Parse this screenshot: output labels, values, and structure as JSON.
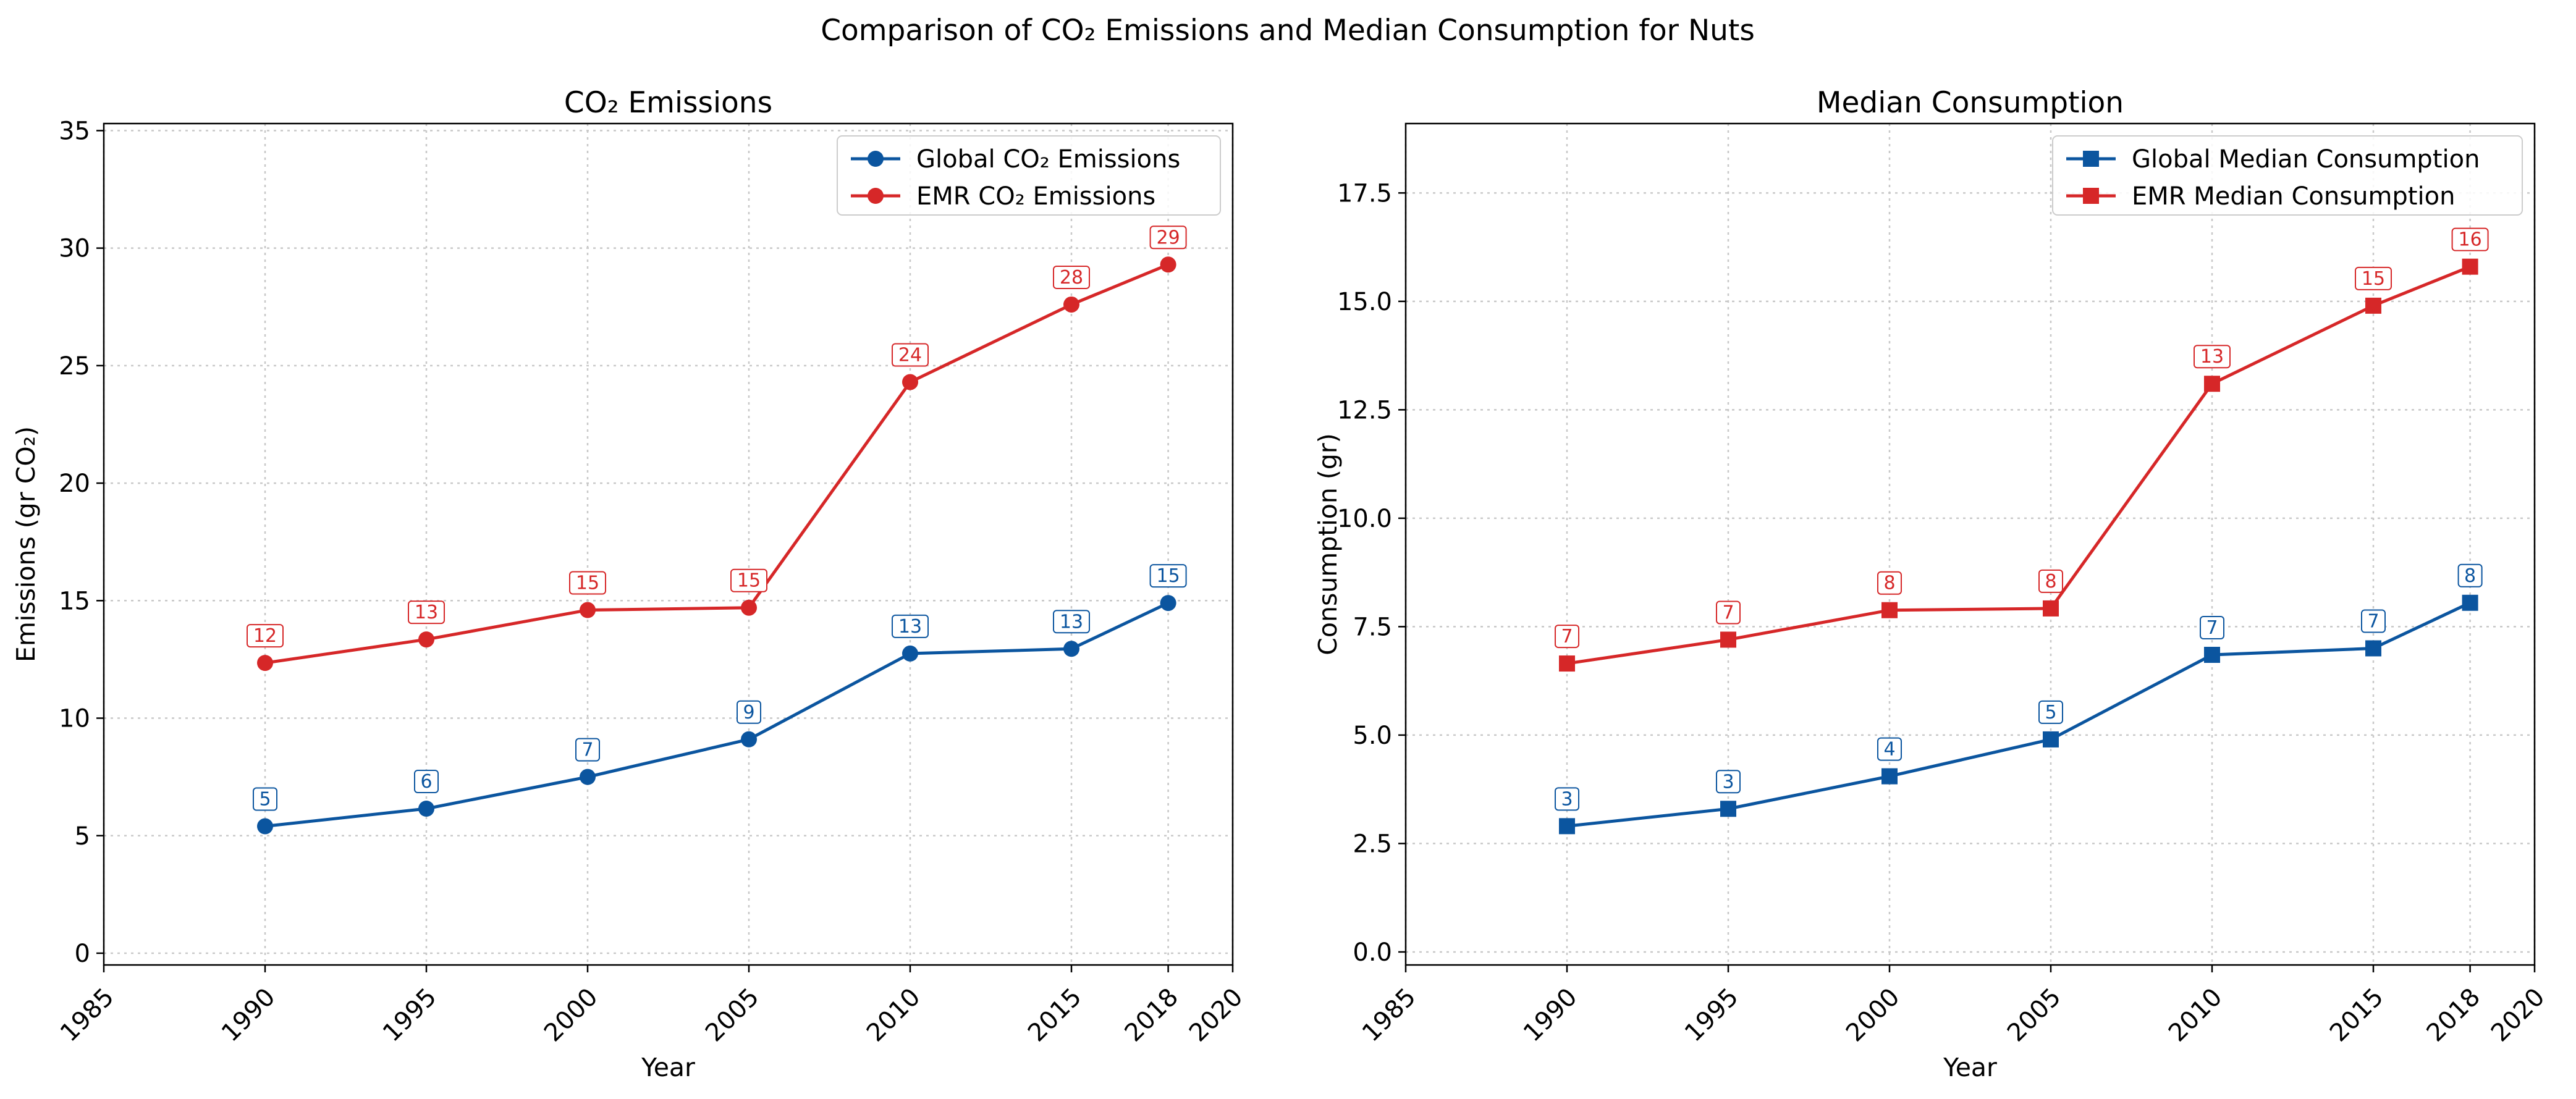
{
  "figure": {
    "suptitle": "Comparison of CO₂ Emissions and Median Consumption for Nuts"
  },
  "colors": {
    "global": "#0b559f",
    "emr": "#d62728",
    "grid": "#c8c8c8"
  },
  "chart_data": [
    {
      "type": "line",
      "title": "CO₂ Emissions",
      "xlabel": "Year",
      "ylabel": "Emissions (gr CO₂)",
      "xlim": [
        1985,
        2020
      ],
      "ylim": [
        -0.5,
        35.3
      ],
      "xticks": [
        1985,
        1990,
        1995,
        2000,
        2005,
        2010,
        2015,
        2018,
        2020
      ],
      "yticks": [
        0,
        5,
        10,
        15,
        20,
        25,
        30,
        35
      ],
      "ytick_labels": [
        "0",
        "5",
        "10",
        "15",
        "20",
        "25",
        "30",
        "35"
      ],
      "grid": true,
      "legend_position": "top-right",
      "marker": "circle",
      "x": [
        1990,
        1995,
        2000,
        2005,
        2010,
        2015,
        2018
      ],
      "series": [
        {
          "name": "Global CO₂ Emissions",
          "color": "#0b559f",
          "values": [
            5.4,
            6.15,
            7.5,
            9.1,
            12.75,
            12.95,
            14.9
          ],
          "labels": [
            "5",
            "6",
            "7",
            "9",
            "13",
            "13",
            "15"
          ]
        },
        {
          "name": "EMR CO₂ Emissions",
          "color": "#d62728",
          "values": [
            12.35,
            13.35,
            14.6,
            14.7,
            24.3,
            27.6,
            29.3
          ],
          "labels": [
            "12",
            "13",
            "15",
            "15",
            "24",
            "28",
            "29"
          ]
        }
      ]
    },
    {
      "type": "line",
      "title": "Median Consumption",
      "xlabel": "Year",
      "ylabel": "Consumption (gr)",
      "xlim": [
        1985,
        2020
      ],
      "ylim": [
        -0.3,
        19.1
      ],
      "xticks": [
        1985,
        1990,
        1995,
        2000,
        2005,
        2010,
        2015,
        2018,
        2020
      ],
      "yticks": [
        0,
        2.5,
        5,
        7.5,
        10,
        12.5,
        15,
        17.5
      ],
      "ytick_labels": [
        "0.0",
        "2.5",
        "5.0",
        "7.5",
        "10.0",
        "12.5",
        "15.0",
        "17.5"
      ],
      "grid": true,
      "legend_position": "top-right",
      "marker": "square",
      "x": [
        1990,
        1995,
        2000,
        2005,
        2010,
        2015,
        2018
      ],
      "series": [
        {
          "name": "Global Median Consumption",
          "color": "#0b559f",
          "values": [
            2.9,
            3.3,
            4.05,
            4.9,
            6.85,
            7.0,
            8.05
          ],
          "labels": [
            "3",
            "3",
            "4",
            "5",
            "7",
            "7",
            "8"
          ]
        },
        {
          "name": "EMR Median Consumption",
          "color": "#d62728",
          "values": [
            6.65,
            7.2,
            7.88,
            7.92,
            13.1,
            14.9,
            15.8
          ],
          "labels": [
            "7",
            "7",
            "8",
            "8",
            "13",
            "15",
            "16"
          ]
        }
      ]
    }
  ]
}
